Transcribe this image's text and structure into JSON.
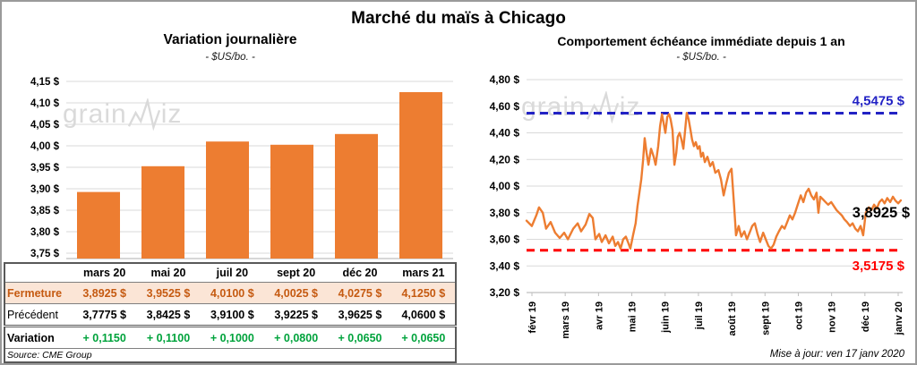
{
  "page": {
    "title": "Marché du maïs à Chicago",
    "updated": "Mise à jour: ven 17 janv 2020",
    "watermark": {
      "prefix": "grain",
      "suffix": "iz"
    }
  },
  "colors": {
    "orange": "#ED7D31",
    "grid": "#D9D9D9",
    "axis": "#BFBFBF",
    "high_blue": "#2222C4",
    "low_red": "#FF0000",
    "close_text": "#C55A11",
    "close_bg": "#FBE5D6",
    "variation_green": "#00A33C",
    "watermark": "#BDBDBD"
  },
  "chart_data": [
    {
      "type": "bar",
      "title": "Variation  journalière",
      "subtitle": "- $US/bo. -",
      "categories": [
        "mars 20",
        "mai 20",
        "juil 20",
        "sept 20",
        "déc 20",
        "mars 21"
      ],
      "values": [
        3.8925,
        3.9525,
        4.01,
        4.0025,
        4.0275,
        4.125
      ],
      "ylim": [
        3.7375,
        4.1625
      ],
      "yticks": [
        3.75,
        3.8,
        3.85,
        3.9,
        3.95,
        4.0,
        4.05,
        4.1,
        4.15
      ],
      "ytick_suffix": " $",
      "grid": "horizontal",
      "legend": "none"
    },
    {
      "type": "line",
      "title": "Comportement  échéance immédiate  depuis 1 an",
      "subtitle": "- $US/bo. -",
      "x_labels": [
        "févr 19",
        "mars 19",
        "avr 19",
        "mai 19",
        "juin 19",
        "juil 19",
        "août 19",
        "sept 19",
        "oct 19",
        "nov 19",
        "déc 19",
        "janv 20"
      ],
      "ylim": [
        3.2,
        4.8
      ],
      "yticks": [
        3.2,
        3.4,
        3.6,
        3.8,
        4.0,
        4.2,
        4.4,
        4.6,
        4.8
      ],
      "ytick_suffix": " $",
      "grid": "horizontal",
      "legend": "none",
      "high_line": {
        "value": 4.5475,
        "label": "4,5475 $"
      },
      "low_line": {
        "value": 3.5175,
        "label": "3,5175 $"
      },
      "last_label": {
        "value": 3.8925,
        "label": "3,8925 $"
      },
      "points": [
        [
          0.0,
          3.74
        ],
        [
          1.4,
          3.7
        ],
        [
          2.6,
          3.78
        ],
        [
          3.3,
          3.84
        ],
        [
          4.3,
          3.8
        ],
        [
          5.2,
          3.68
        ],
        [
          6.4,
          3.73
        ],
        [
          7.6,
          3.65
        ],
        [
          8.8,
          3.61
        ],
        [
          10.0,
          3.65
        ],
        [
          11.0,
          3.6
        ],
        [
          12.4,
          3.68
        ],
        [
          13.6,
          3.72
        ],
        [
          14.5,
          3.66
        ],
        [
          15.7,
          3.71
        ],
        [
          16.7,
          3.79
        ],
        [
          17.6,
          3.76
        ],
        [
          18.3,
          3.6
        ],
        [
          19.3,
          3.64
        ],
        [
          20.0,
          3.58
        ],
        [
          21.0,
          3.63
        ],
        [
          21.9,
          3.57
        ],
        [
          22.9,
          3.62
        ],
        [
          23.6,
          3.55
        ],
        [
          24.3,
          3.58
        ],
        [
          25.0,
          3.53
        ],
        [
          25.7,
          3.6
        ],
        [
          26.4,
          3.62
        ],
        [
          27.1,
          3.57
        ],
        [
          27.6,
          3.53
        ],
        [
          28.3,
          3.63
        ],
        [
          29.0,
          3.72
        ],
        [
          29.5,
          3.85
        ],
        [
          30.0,
          3.95
        ],
        [
          30.5,
          4.05
        ],
        [
          31.0,
          4.2
        ],
        [
          31.4,
          4.36
        ],
        [
          31.9,
          4.25
        ],
        [
          32.4,
          4.16
        ],
        [
          33.1,
          4.28
        ],
        [
          33.8,
          4.22
        ],
        [
          34.3,
          4.16
        ],
        [
          35.0,
          4.3
        ],
        [
          35.5,
          4.45
        ],
        [
          36.0,
          4.54
        ],
        [
          36.4,
          4.48
        ],
        [
          36.9,
          4.4
        ],
        [
          37.4,
          4.52
        ],
        [
          37.9,
          4.54
        ],
        [
          38.3,
          4.5
        ],
        [
          38.8,
          4.42
        ],
        [
          39.3,
          4.16
        ],
        [
          39.8,
          4.25
        ],
        [
          40.2,
          4.37
        ],
        [
          40.7,
          4.4
        ],
        [
          41.2,
          4.35
        ],
        [
          41.7,
          4.28
        ],
        [
          42.1,
          4.4
        ],
        [
          42.6,
          4.55
        ],
        [
          43.1,
          4.5
        ],
        [
          43.6,
          4.42
        ],
        [
          44.0,
          4.35
        ],
        [
          44.5,
          4.3
        ],
        [
          45.0,
          4.33
        ],
        [
          45.5,
          4.28
        ],
        [
          46.0,
          4.3
        ],
        [
          46.4,
          4.22
        ],
        [
          46.9,
          4.25
        ],
        [
          47.4,
          4.18
        ],
        [
          48.1,
          4.22
        ],
        [
          48.8,
          4.15
        ],
        [
          49.5,
          4.18
        ],
        [
          50.2,
          4.1
        ],
        [
          51.0,
          4.12
        ],
        [
          51.7,
          4.05
        ],
        [
          52.4,
          3.93
        ],
        [
          53.1,
          4.02
        ],
        [
          53.8,
          4.1
        ],
        [
          54.5,
          4.13
        ],
        [
          55.2,
          3.85
        ],
        [
          55.7,
          3.63
        ],
        [
          56.4,
          3.7
        ],
        [
          57.1,
          3.62
        ],
        [
          57.9,
          3.66
        ],
        [
          58.6,
          3.6
        ],
        [
          59.3,
          3.65
        ],
        [
          60.0,
          3.7
        ],
        [
          60.7,
          3.72
        ],
        [
          61.4,
          3.64
        ],
        [
          62.1,
          3.58
        ],
        [
          62.9,
          3.65
        ],
        [
          63.6,
          3.6
        ],
        [
          64.3,
          3.55
        ],
        [
          65.0,
          3.53
        ],
        [
          65.7,
          3.56
        ],
        [
          66.4,
          3.62
        ],
        [
          67.1,
          3.66
        ],
        [
          67.9,
          3.7
        ],
        [
          68.6,
          3.68
        ],
        [
          69.3,
          3.73
        ],
        [
          70.0,
          3.78
        ],
        [
          70.7,
          3.75
        ],
        [
          71.4,
          3.8
        ],
        [
          72.1,
          3.86
        ],
        [
          72.9,
          3.93
        ],
        [
          73.6,
          3.88
        ],
        [
          74.3,
          3.95
        ],
        [
          75.0,
          3.98
        ],
        [
          75.7,
          3.93
        ],
        [
          76.4,
          3.9
        ],
        [
          77.1,
          3.95
        ],
        [
          77.6,
          3.8
        ],
        [
          78.1,
          3.92
        ],
        [
          78.8,
          3.9
        ],
        [
          79.5,
          3.88
        ],
        [
          80.2,
          3.86
        ],
        [
          81.0,
          3.88
        ],
        [
          81.7,
          3.85
        ],
        [
          82.4,
          3.82
        ],
        [
          83.1,
          3.8
        ],
        [
          83.8,
          3.78
        ],
        [
          84.5,
          3.75
        ],
        [
          85.2,
          3.73
        ],
        [
          86.0,
          3.7
        ],
        [
          86.7,
          3.72
        ],
        [
          87.4,
          3.68
        ],
        [
          88.1,
          3.66
        ],
        [
          88.8,
          3.7
        ],
        [
          89.5,
          3.63
        ],
        [
          90.2,
          3.8
        ],
        [
          91.0,
          3.84
        ],
        [
          91.7,
          3.82
        ],
        [
          92.4,
          3.86
        ],
        [
          93.1,
          3.83
        ],
        [
          93.8,
          3.88
        ],
        [
          94.5,
          3.9
        ],
        [
          95.2,
          3.87
        ],
        [
          95.9,
          3.91
        ],
        [
          96.7,
          3.88
        ],
        [
          97.4,
          3.92
        ],
        [
          98.1,
          3.89
        ],
        [
          98.8,
          3.87
        ],
        [
          99.5,
          3.8925
        ]
      ]
    }
  ],
  "table": {
    "columns": [
      "",
      "mars 20",
      "mai 20",
      "juil 20",
      "sept 20",
      "déc 20",
      "mars 21"
    ],
    "rows": [
      {
        "label": "Fermeture",
        "style": "close",
        "values": [
          "3,8925  $",
          "3,9525  $",
          "4,0100  $",
          "4,0025  $",
          "4,0275  $",
          "4,1250  $"
        ]
      },
      {
        "label": "Précédent",
        "style": "prev",
        "values": [
          "3,7775  $",
          "3,8425  $",
          "3,9100  $",
          "3,9225  $",
          "3,9625  $",
          "4,0600  $"
        ]
      },
      {
        "label": "Variation",
        "style": "var",
        "values": [
          "+ 0,1150",
          "+ 0,1100",
          "+ 0,1000",
          "+ 0,0800",
          "+ 0,0650",
          "+ 0,0650"
        ]
      }
    ],
    "source": "Source: CME Group"
  }
}
